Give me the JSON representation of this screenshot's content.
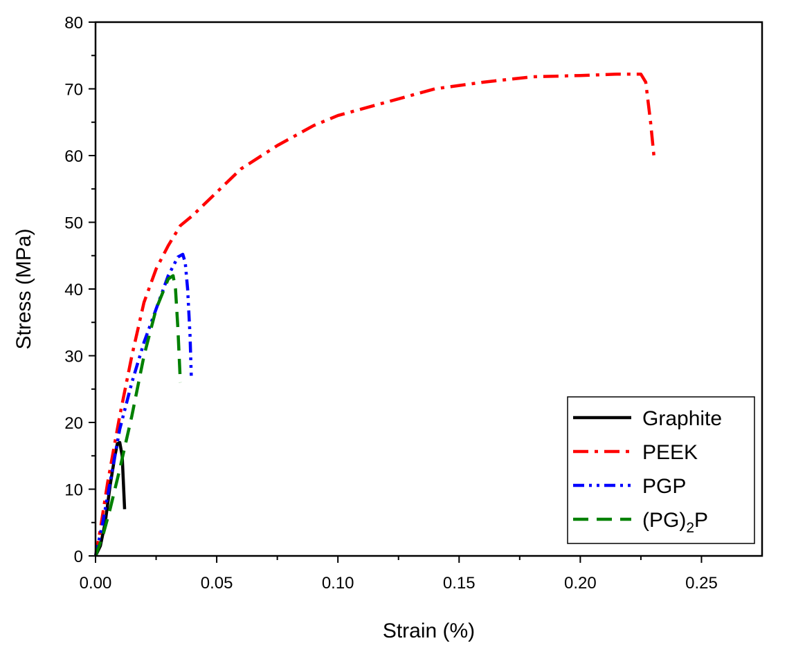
{
  "chart_data": {
    "type": "line",
    "title": "",
    "xlabel": "Strain (%)",
    "ylabel": "Stress (MPa)",
    "xlim": [
      0,
      0.275
    ],
    "ylim": [
      0,
      80
    ],
    "grid": false,
    "legend_position": "bottom-right",
    "x_ticks": [
      0.0,
      0.05,
      0.1,
      0.15,
      0.2,
      0.25
    ],
    "x_tick_labels": [
      "0.00",
      "0.05",
      "0.10",
      "0.15",
      "0.20",
      "0.25"
    ],
    "y_ticks": [
      0,
      10,
      20,
      30,
      40,
      50,
      60,
      70,
      80
    ],
    "y_tick_labels": [
      "0",
      "10",
      "20",
      "30",
      "40",
      "50",
      "60",
      "70",
      "80"
    ],
    "series": [
      {
        "name": "Graphite",
        "color": "#000000",
        "style": "solid",
        "x": [
          0.0,
          0.002,
          0.004,
          0.006,
          0.008,
          0.009,
          0.01,
          0.011,
          0.0115,
          0.012
        ],
        "y": [
          0.0,
          1.5,
          5.0,
          10.5,
          15.0,
          16.8,
          17.0,
          15.0,
          11.0,
          7.0
        ]
      },
      {
        "name": "PEEK",
        "color": "#ff0000",
        "style": "dash-dot",
        "x": [
          0.0,
          0.002,
          0.005,
          0.01,
          0.015,
          0.02,
          0.025,
          0.03,
          0.035,
          0.04,
          0.05,
          0.06,
          0.075,
          0.09,
          0.1,
          0.12,
          0.14,
          0.16,
          0.18,
          0.2,
          0.215,
          0.225,
          0.227,
          0.229,
          0.2305
        ],
        "y": [
          0.0,
          4.0,
          11.0,
          21.0,
          30.0,
          38.0,
          43.0,
          46.5,
          49.5,
          51.0,
          54.5,
          58.0,
          61.5,
          64.5,
          66.0,
          68.0,
          70.0,
          71.0,
          71.8,
          72.0,
          72.2,
          72.2,
          71.0,
          65.0,
          59.5
        ]
      },
      {
        "name": "PGP",
        "color": "#0000ff",
        "style": "dash-dot-dot",
        "x": [
          0.0,
          0.003,
          0.006,
          0.01,
          0.015,
          0.02,
          0.025,
          0.03,
          0.034,
          0.036,
          0.037,
          0.038,
          0.039,
          0.0395
        ],
        "y": [
          0.0,
          5.0,
          11.0,
          19.0,
          26.0,
          32.0,
          37.0,
          42.0,
          44.8,
          45.2,
          44.0,
          40.0,
          33.0,
          27.0
        ]
      },
      {
        "name": "(PG)₂P",
        "legend_main": "(PG)",
        "legend_sub": "2",
        "legend_tail": "P",
        "color": "#008000",
        "style": "dashed",
        "x": [
          0.0,
          0.003,
          0.006,
          0.01,
          0.015,
          0.02,
          0.025,
          0.03,
          0.032,
          0.033,
          0.034,
          0.035
        ],
        "y": [
          0.0,
          3.0,
          7.0,
          13.0,
          21.0,
          30.0,
          37.0,
          41.5,
          42.0,
          40.0,
          34.0,
          26.0
        ]
      }
    ]
  }
}
